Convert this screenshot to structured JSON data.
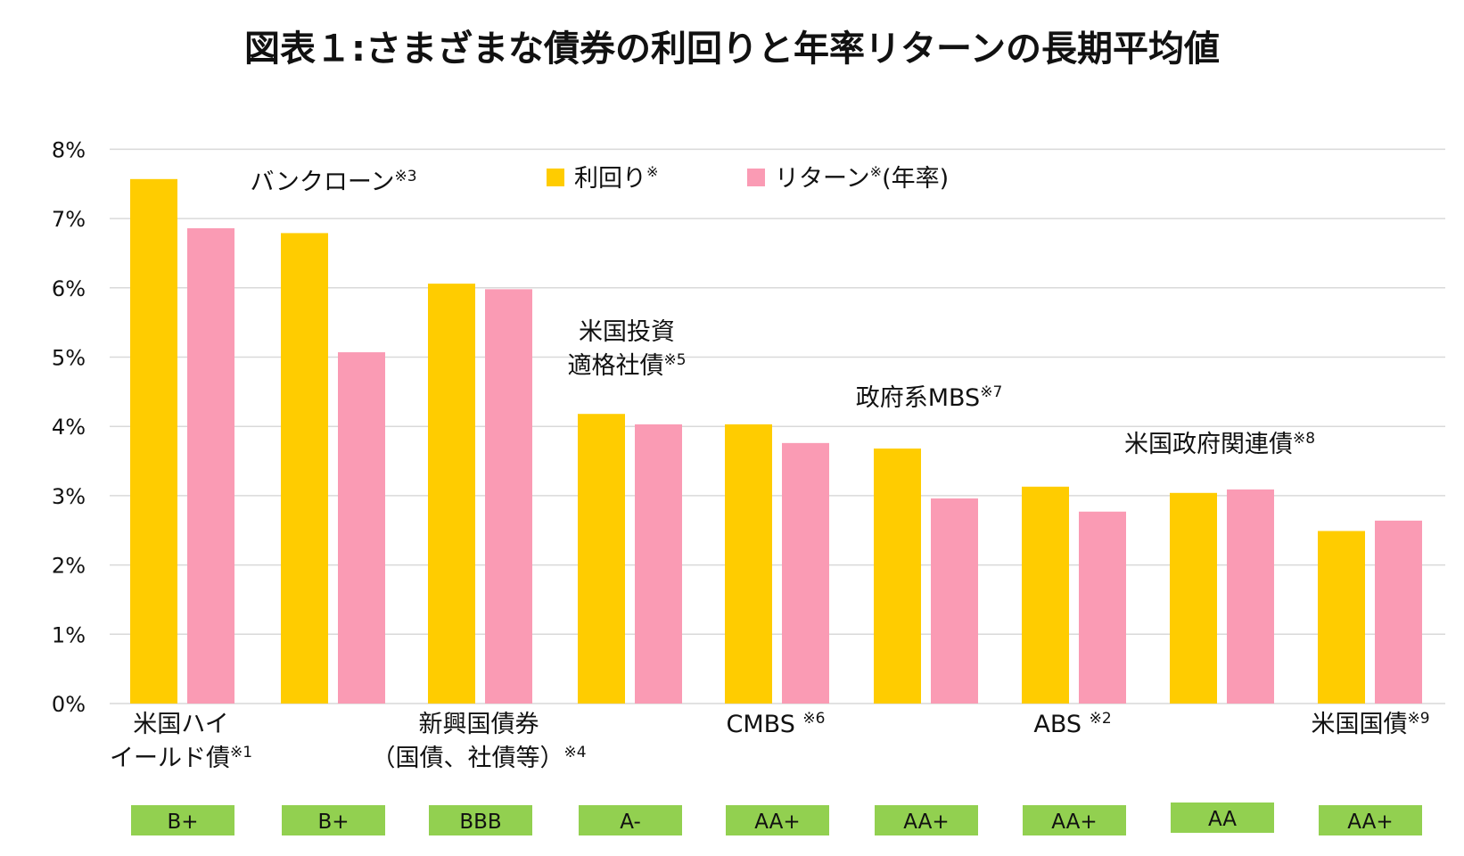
{
  "chart_data": {
    "type": "bar",
    "title": "図表１:さまざまな債券の利回りと年率リターンの長期平均値",
    "ylim": [
      0,
      8
    ],
    "yticks": [
      "0%",
      "1%",
      "2%",
      "3%",
      "4%",
      "5%",
      "6%",
      "7%",
      "8%"
    ],
    "grid": true,
    "legend_position": "top-center",
    "colors": {
      "yield": "#FFCC00",
      "return": "#FA9BB4",
      "grade": "#92D050",
      "grid": "#D9D9D9"
    },
    "legend": [
      {
        "label": "利回り",
        "note": "※"
      },
      {
        "label": "リターン",
        "note": "※",
        "suffix": "(年率)"
      }
    ],
    "categories": [
      {
        "lines": [
          "米国ハイ",
          "イールド債"
        ],
        "note": "※1",
        "grade": "B+"
      },
      {
        "lines": [
          "バンクローン"
        ],
        "note": "※3",
        "grade": "B+"
      },
      {
        "lines": [
          "新興国債券",
          "（国債、社債等）"
        ],
        "note": "※4",
        "grade": "BBB"
      },
      {
        "lines": [
          "米国投資",
          "適格社債"
        ],
        "note": "※5",
        "grade": "A-"
      },
      {
        "lines": [
          "CMBS "
        ],
        "note": "※6",
        "grade": "AA+"
      },
      {
        "lines": [
          "政府系MBS"
        ],
        "note": "※7",
        "grade": "AA+"
      },
      {
        "lines": [
          "ABS "
        ],
        "note": "※2",
        "grade": "AA+"
      },
      {
        "lines": [
          "米国政府関連債"
        ],
        "note": "※8",
        "grade": "AA"
      },
      {
        "lines": [
          "米国国債"
        ],
        "note": "※9",
        "grade": "AA+"
      }
    ],
    "series": [
      {
        "name": "利回り",
        "values": [
          7.57,
          6.79,
          6.06,
          4.18,
          4.03,
          3.68,
          3.13,
          3.04,
          2.49
        ]
      },
      {
        "name": "リターン(年率)",
        "values": [
          6.86,
          5.07,
          5.98,
          4.03,
          3.76,
          2.96,
          2.77,
          3.09,
          2.64
        ]
      }
    ]
  }
}
